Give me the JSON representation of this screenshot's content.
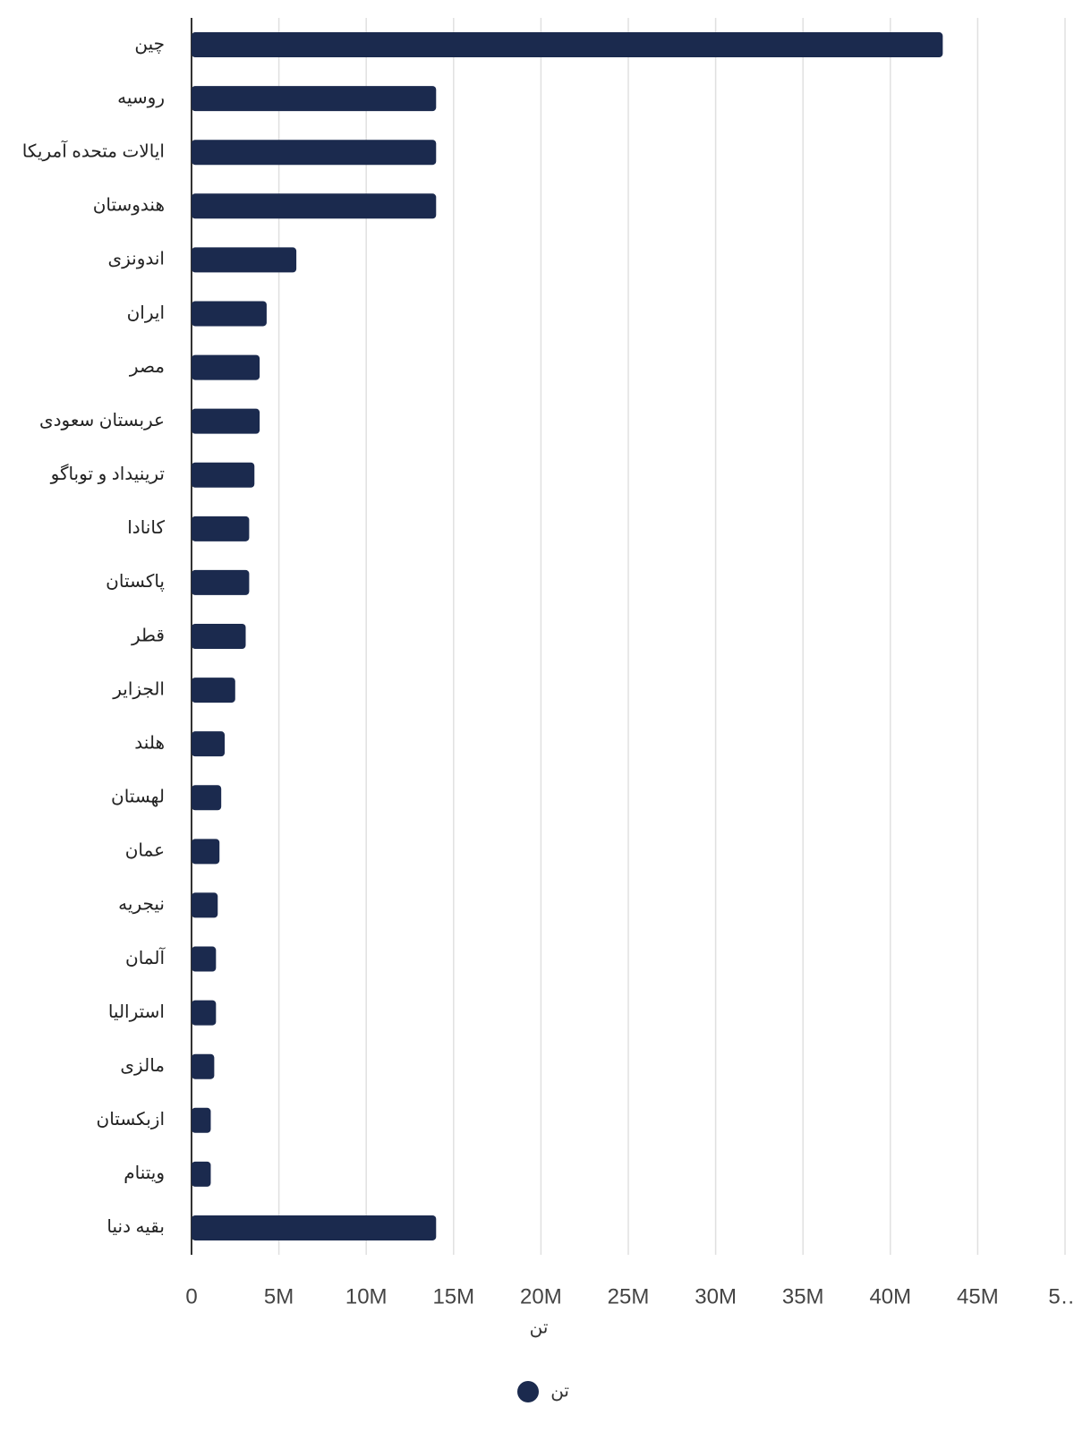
{
  "chart_data": {
    "type": "bar",
    "orientation": "horizontal",
    "categories": [
      "چین",
      "روسیه",
      "ایالات متحده آمریکا",
      "هندوستان",
      "اندونزی",
      "ایران",
      "مصر",
      "عربستان سعودی",
      "ترینیداد و توباگو",
      "کانادا",
      "پاکستان",
      "قطر",
      "الجزایر",
      "هلند",
      "لهستان",
      "عمان",
      "نیجریه",
      "آلمان",
      "استرالیا",
      "مالزی",
      "ازبکستان",
      "ویتنام",
      "بقیه دنیا"
    ],
    "series": [
      {
        "name": "تن",
        "color": "#1b2a4e",
        "values": [
          43000000,
          14000000,
          14000000,
          14000000,
          6000000,
          4300000,
          3900000,
          3900000,
          3600000,
          3300000,
          3300000,
          3100000,
          2500000,
          1900000,
          1700000,
          1600000,
          1500000,
          1400000,
          1400000,
          1300000,
          1100000,
          1100000,
          14000000
        ]
      }
    ],
    "xlabel": "تن",
    "xlim": [
      0,
      50000000
    ],
    "xticks": [
      0,
      {
        "value": 5000000,
        "label": "5M"
      },
      {
        "value": 10000000,
        "label": "10M"
      },
      {
        "value": 15000000,
        "label": "15M"
      },
      {
        "value": 20000000,
        "label": "20M"
      },
      {
        "value": 25000000,
        "label": "25M"
      },
      {
        "value": 30000000,
        "label": "30M"
      },
      {
        "value": 35000000,
        "label": "35M"
      },
      {
        "value": 40000000,
        "label": "40M"
      },
      {
        "value": 45000000,
        "label": "45M"
      },
      {
        "value": 50000000,
        "label": "5…"
      }
    ],
    "grid": true,
    "legend": "bottom"
  }
}
